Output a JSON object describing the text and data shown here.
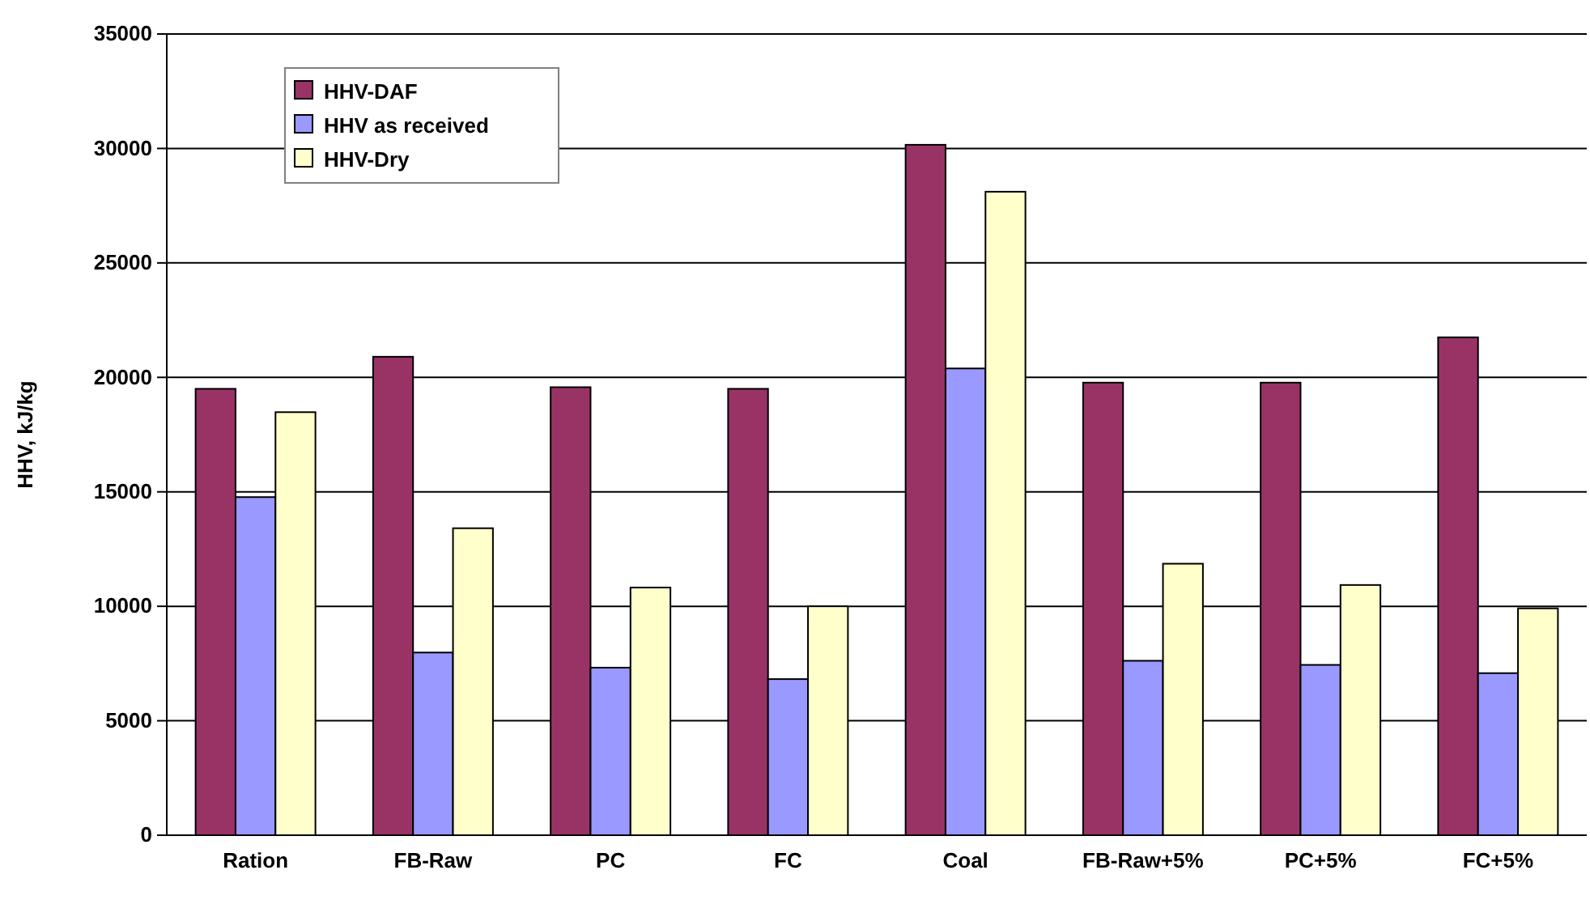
{
  "chart_data": {
    "type": "bar",
    "ylabel": "HHV, kJ/kg",
    "categories": [
      "Ration",
      "FB-Raw",
      "PC",
      "FC",
      "Coal",
      "FB-Raw+5%",
      "PC+5%",
      "FC+5%"
    ],
    "series": [
      {
        "name": "HHV-DAF",
        "color": "#993366",
        "values": [
          19500,
          20900,
          19570,
          19500,
          30160,
          19770,
          19770,
          21750
        ]
      },
      {
        "name": "HHV as received",
        "color": "#9999ff",
        "values": [
          14770,
          7980,
          7320,
          6820,
          20390,
          7620,
          7440,
          7080
        ]
      },
      {
        "name": "HHV-Dry",
        "color": "#ffffcc",
        "values": [
          18480,
          13410,
          10820,
          10000,
          28110,
          11860,
          10930,
          9910
        ]
      }
    ],
    "ylim": [
      0,
      35000
    ],
    "yticks": [
      0,
      5000,
      10000,
      15000,
      20000,
      25000,
      30000,
      35000
    ],
    "grid": "y",
    "legend": "top left"
  }
}
